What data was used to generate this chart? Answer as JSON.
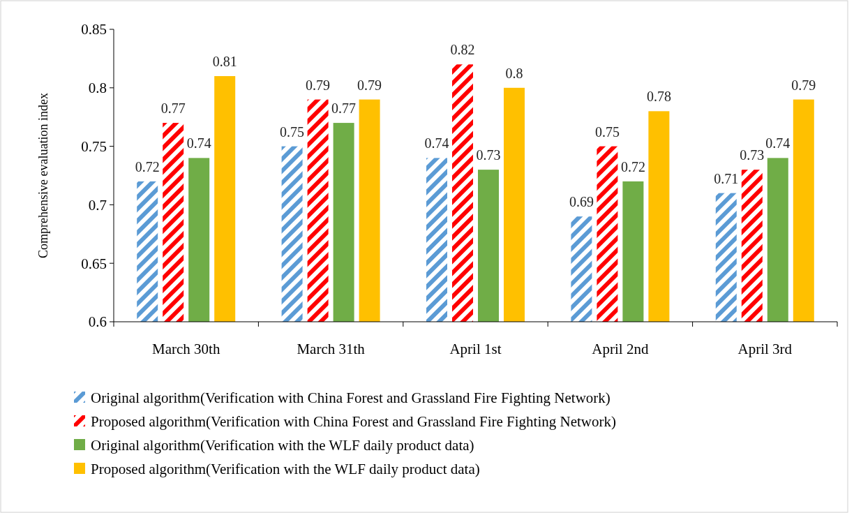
{
  "chart_data": {
    "type": "bar",
    "ylabel": "Comprehensive evaluation index",
    "categories": [
      "March 30th",
      "March 31th",
      "April 1st",
      "April 2nd",
      "April 3rd"
    ],
    "series": [
      {
        "name": "Original algorithm(Verification with China Forest and Grassland Fire Fighting Network)",
        "color": "#5b9bd5",
        "values": [
          0.72,
          0.75,
          0.74,
          0.69,
          0.71
        ]
      },
      {
        "name": "Proposed algorithm(Verification with China Forest and Grassland Fire Fighting Network)",
        "color": "#ff0000",
        "values": [
          0.77,
          0.79,
          0.82,
          0.75,
          0.73
        ]
      },
      {
        "name": "Original algorithm(Verification with the WLF daily product data)",
        "color": "#70ad47",
        "values": [
          0.74,
          0.77,
          0.73,
          0.72,
          0.74
        ]
      },
      {
        "name": "Proposed algorithm(Verification with the WLF daily product data)",
        "color": "#ffc000",
        "values": [
          0.81,
          0.79,
          0.8,
          0.78,
          0.79
        ]
      }
    ],
    "ylim": [
      0.6,
      0.85
    ],
    "yticks": [
      0.6,
      0.65,
      0.7,
      0.75,
      0.8,
      0.85
    ],
    "data_labels": true,
    "legend": "bottom",
    "grid": false
  }
}
